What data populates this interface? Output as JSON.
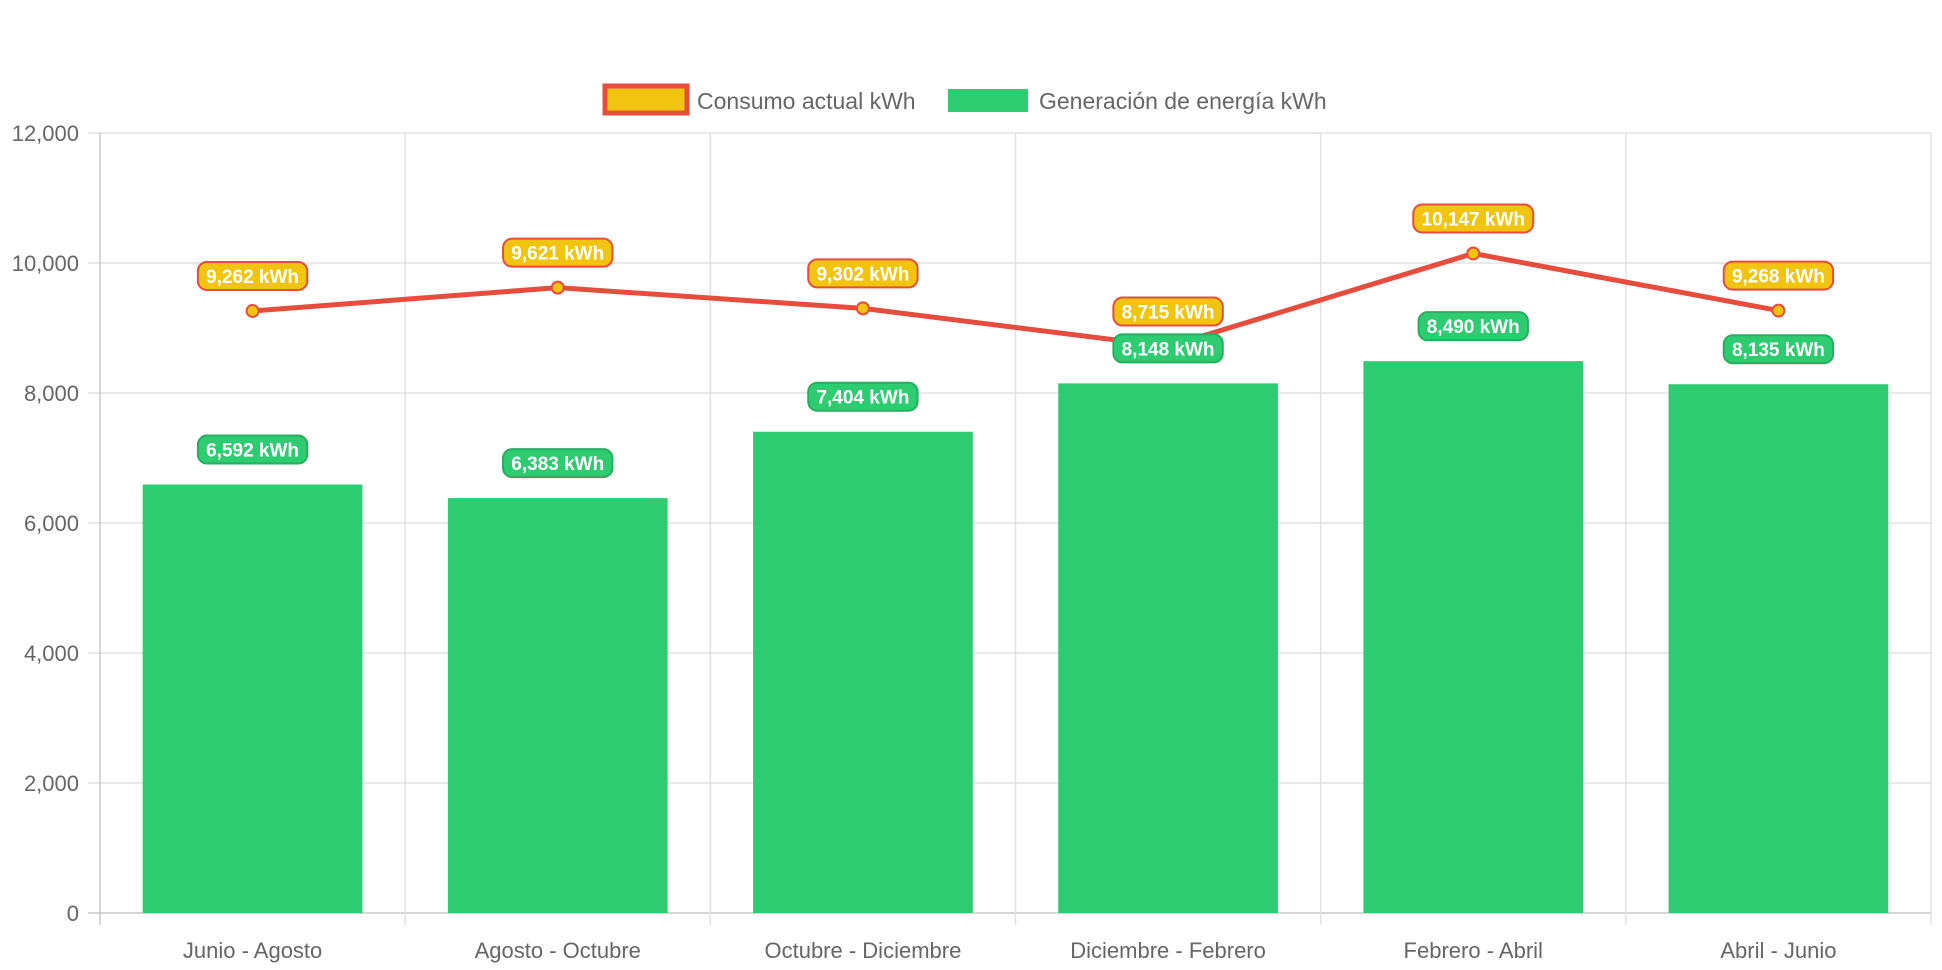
{
  "chart_data": {
    "type": "bar",
    "categories": [
      "Junio - Agosto",
      "Agosto - Octubre",
      "Octubre - Diciembre",
      "Diciembre - Febrero",
      "Febrero - Abril",
      "Abril - Junio"
    ],
    "series": [
      {
        "name": "Consumo actual kWh",
        "type": "line",
        "values": [
          9262,
          9621,
          9302,
          8715,
          10147,
          9268
        ],
        "labels": [
          "9,262 kWh",
          "9,621 kWh",
          "9,302 kWh",
          "8,715 kWh",
          "10,147 kWh",
          "9,268 kWh"
        ],
        "color": "#e74c3c",
        "fill": "#f1c40f"
      },
      {
        "name": "Generación de energía kWh",
        "type": "bar",
        "values": [
          6592,
          6383,
          7404,
          8148,
          8490,
          8135
        ],
        "labels": [
          "6,592 kWh",
          "6,383 kWh",
          "7,404 kWh",
          "8,148 kWh",
          "8,490 kWh",
          "8,135 kWh"
        ],
        "color": "#2ecc71",
        "border": "#27ae60"
      }
    ],
    "ylim": [
      0,
      12000
    ],
    "yticks": [
      "0",
      "2,000",
      "4,000",
      "6,000",
      "8,000",
      "10,000",
      "12,000"
    ],
    "grid": true,
    "legend_position": "top-center"
  }
}
